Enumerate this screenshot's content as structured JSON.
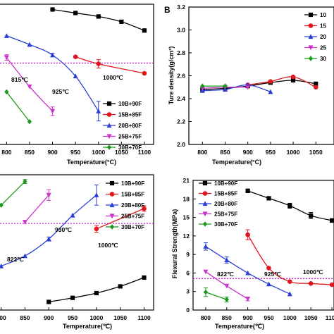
{
  "colors": {
    "10B+90F": "#000000",
    "15B+85F": "#e0151d",
    "20B+80F": "#2b3fd6",
    "25B+75F": "#cc33cc",
    "30B+70F": "#1a9a1a",
    "threshold": "#cc22cc"
  },
  "chart_data": [
    {
      "id": "A",
      "type": "line",
      "panel_label": "",
      "xlabel": "Temperature(°C)",
      "ylabel": "",
      "x_ticks": [
        "800",
        "850",
        "900",
        "950",
        "1000",
        "1050",
        "1100"
      ],
      "y_ticks": [],
      "xlim": [
        755,
        1120
      ],
      "ylim": [
        0.2,
        4.2
      ],
      "threshold": 2.52,
      "legend": {
        "placement": "bottom-right",
        "labels": [
          "10B+90F",
          "15B+85F",
          "20B+80F",
          "25B+75F",
          "30B+70F"
        ]
      },
      "series": [
        {
          "name": "10B+90F",
          "marker": "square",
          "x": [
            900,
            950,
            1000,
            1050,
            1100
          ],
          "y": [
            4.05,
            3.95,
            3.85,
            3.7,
            3.45
          ],
          "err": [
            0,
            0,
            0,
            0,
            0
          ]
        },
        {
          "name": "15B+85F",
          "marker": "circle",
          "x": [
            950,
            1000,
            1100
          ],
          "y": [
            2.7,
            2.5,
            2.23
          ],
          "err": [
            0,
            0.12,
            0
          ]
        },
        {
          "name": "20B+80F",
          "marker": "triangle",
          "x": [
            800,
            850,
            900,
            950,
            1000
          ],
          "y": [
            3.3,
            3.05,
            2.75,
            2.15,
            1.15
          ],
          "err": [
            0,
            0,
            0.05,
            0,
            0.28
          ]
        },
        {
          "name": "25B+75F",
          "marker": "tri-down",
          "x": [
            800,
            850,
            900
          ],
          "y": [
            2.68,
            1.85,
            1.15
          ],
          "err": [
            0.08,
            0,
            0.12
          ]
        },
        {
          "name": "30B+70F",
          "marker": "diamond",
          "x": [
            800,
            850
          ],
          "y": [
            1.7,
            0.85
          ],
          "err": [
            0,
            0
          ]
        }
      ],
      "annotations": [
        "815℃",
        "925℃",
        "1000℃"
      ]
    },
    {
      "id": "B",
      "type": "line",
      "panel_label": "B",
      "xlabel": "Temperature(°C)",
      "ylabel": "Ture density(g/cm³)",
      "x_ticks": [
        "800",
        "850",
        "900",
        "950",
        "1000",
        "1050"
      ],
      "y_ticks": [
        "2.0",
        "2.2",
        "2.4",
        "2.6",
        "2.8",
        "3.0",
        "3.2"
      ],
      "xlim": [
        770,
        1090
      ],
      "ylim": [
        2.0,
        3.2
      ],
      "legend": {
        "placement": "top-right",
        "labels": [
          "10",
          "15",
          "20",
          "25",
          "30"
        ]
      },
      "series": [
        {
          "name": "10B+90F",
          "marker": "square",
          "x": [
            800,
            850,
            900,
            950,
            1000,
            1050
          ],
          "y": [
            2.48,
            2.49,
            2.51,
            2.54,
            2.56,
            2.53
          ]
        },
        {
          "name": "15B+85F",
          "marker": "circle",
          "x": [
            900,
            950,
            1000,
            1050
          ],
          "y": [
            2.52,
            2.55,
            2.59,
            2.5
          ]
        },
        {
          "name": "20B+80F",
          "marker": "triangle",
          "x": [
            800,
            850,
            900,
            950
          ],
          "y": [
            2.47,
            2.48,
            2.52,
            2.46
          ]
        },
        {
          "name": "25B+75F",
          "marker": "tri-down",
          "x": [
            800,
            850,
            900
          ],
          "y": [
            2.49,
            2.5,
            2.5
          ]
        },
        {
          "name": "30B+70F",
          "marker": "diamond",
          "x": [
            800,
            850
          ],
          "y": [
            2.51,
            2.51
          ]
        }
      ]
    },
    {
      "id": "C",
      "type": "line",
      "panel_label": "",
      "xlabel": "Temperature(℃)",
      "ylabel": "",
      "x_ticks": [
        "800",
        "850",
        "900",
        "950",
        "1000",
        "1050",
        "1100"
      ],
      "y_ticks": [],
      "xlim": [
        768,
        1120
      ],
      "ylim": [
        0,
        20
      ],
      "threshold": 12.8,
      "legend": {
        "placement": "top-right",
        "labels": [
          "10B+90F",
          "15B+85F",
          "20B+80F",
          "25B+75F",
          "30B+70F"
        ]
      },
      "series": [
        {
          "name": "10B+90F",
          "marker": "square",
          "x": [
            900,
            950,
            1000,
            1050,
            1100
          ],
          "y": [
            1.2,
            1.8,
            2.5,
            3.5,
            4.8
          ],
          "err": [
            0.2,
            0.2,
            0.2,
            0.2,
            0.2
          ]
        },
        {
          "name": "15B+85F",
          "marker": "circle",
          "x": [
            1000,
            1100
          ],
          "y": [
            12.0,
            15.0
          ],
          "err": [
            0.5,
            0.4
          ]
        },
        {
          "name": "20B+80F",
          "marker": "triangle",
          "x": [
            800,
            850,
            900,
            950,
            1000
          ],
          "y": [
            6.5,
            8.0,
            10.5,
            14.0,
            17.0
          ],
          "err": [
            0,
            0,
            0.3,
            0,
            1.5
          ]
        },
        {
          "name": "25B+75F",
          "marker": "tri-down",
          "x": [
            850,
            900
          ],
          "y": [
            13.0,
            17.0
          ],
          "err": [
            0,
            0.8
          ]
        },
        {
          "name": "30B+70F",
          "marker": "diamond",
          "x": [
            800,
            850
          ],
          "y": [
            15.5,
            19.0
          ],
          "err": [
            0,
            0.3
          ]
        }
      ],
      "annotations": [
        "822℃",
        "930℃",
        "1000℃"
      ]
    },
    {
      "id": "D",
      "type": "line",
      "panel_label": "",
      "xlabel": "Temperature(℃)",
      "ylabel": "Flexural Strength(MPa)",
      "x_ticks": [
        "800",
        "850",
        "900",
        "950",
        "1000",
        "1050",
        "1100"
      ],
      "y_ticks": [
        "0",
        "3",
        "6",
        "9",
        "12",
        "15",
        "18",
        "21"
      ],
      "xlim": [
        770,
        1105
      ],
      "ylim": [
        0,
        21
      ],
      "threshold": 5.1,
      "legend": {
        "placement": "top-left",
        "labels": [
          "10B+90F",
          "15B+85F",
          "20B+80F",
          "25B+75F",
          "30B+70F"
        ]
      },
      "series": [
        {
          "name": "10B+90F",
          "marker": "square",
          "x": [
            900,
            950,
            1000,
            1050,
            1100
          ],
          "y": [
            19.3,
            18.1,
            16.9,
            15.3,
            14.5
          ],
          "err": [
            0.3,
            0.2,
            0.4,
            0.5,
            0.3
          ]
        },
        {
          "name": "15B+85F",
          "marker": "circle",
          "x": [
            900,
            950,
            1000,
            1050,
            1100
          ],
          "y": [
            12.2,
            6.8,
            4.6,
            4.3,
            4.1
          ],
          "err": [
            0.8,
            0,
            0,
            0,
            0
          ]
        },
        {
          "name": "20B+80F",
          "marker": "triangle",
          "x": [
            800,
            850,
            900,
            950,
            1000
          ],
          "y": [
            10.3,
            8.1,
            6.0,
            4.2,
            2.6
          ],
          "err": [
            0.6,
            0.5,
            0,
            0,
            0
          ]
        },
        {
          "name": "25B+75F",
          "marker": "tri-down",
          "x": [
            800,
            850,
            900
          ],
          "y": [
            6.2,
            3.9,
            1.8
          ],
          "err": [
            0,
            0,
            0.3
          ]
        },
        {
          "name": "30B+70F",
          "marker": "diamond",
          "x": [
            800,
            850
          ],
          "y": [
            2.9,
            1.7
          ],
          "err": [
            0.7,
            0.4
          ]
        }
      ],
      "annotations": [
        "822℃",
        "925℃",
        "1000℃"
      ]
    }
  ]
}
